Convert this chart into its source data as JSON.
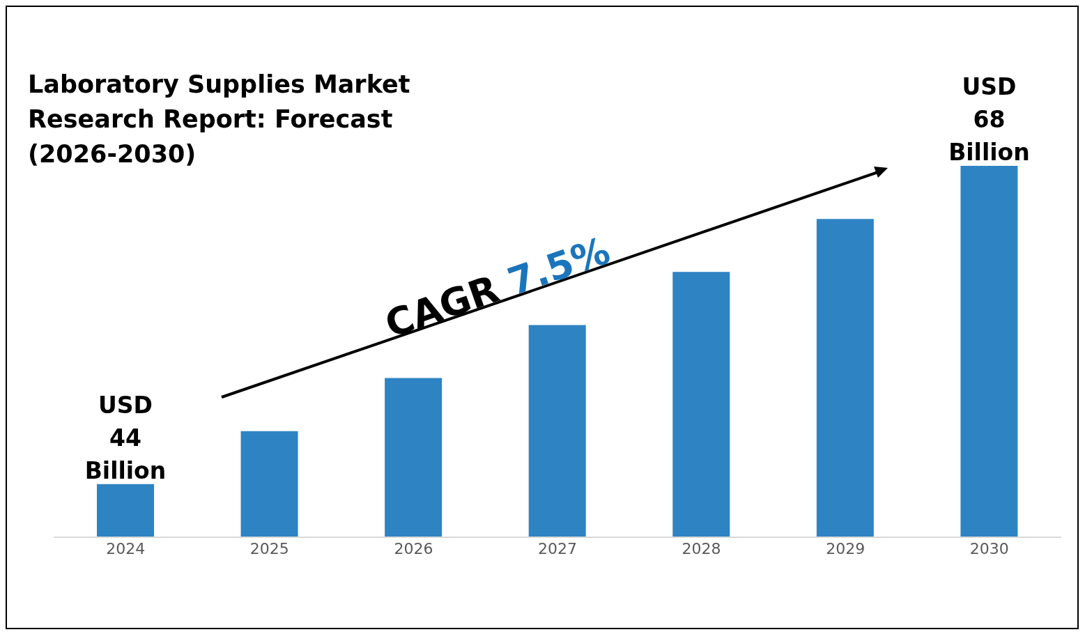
{
  "chart_data": {
    "type": "bar",
    "title": "Laboratory Supplies Market Research Report: Forecast (2026-2030)",
    "categories": [
      "2024",
      "2025",
      "2026",
      "2027",
      "2028",
      "2029",
      "2030"
    ],
    "values": [
      44,
      48,
      52,
      56,
      60,
      64,
      68
    ],
    "value_labels": [
      "USD 44 Billion",
      null,
      null,
      null,
      null,
      null,
      "USD 68 Billion"
    ],
    "color": "#2e83c3",
    "ylim": [
      40,
      68
    ],
    "tick_labels": "x",
    "grid": false,
    "legend": false,
    "annotations": [
      "CAGR 7.5%"
    ]
  }
}
